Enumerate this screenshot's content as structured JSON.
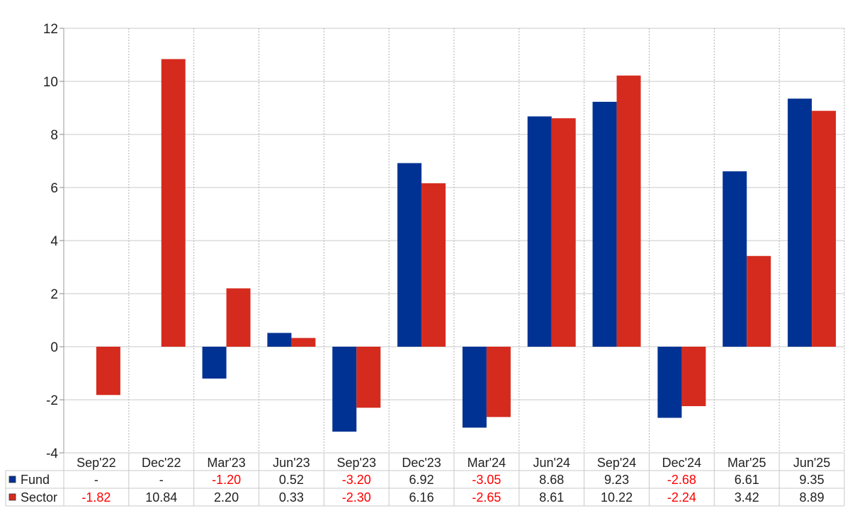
{
  "chart_data": {
    "type": "bar",
    "categories": [
      "Sep'22",
      "Dec'22",
      "Mar'23",
      "Jun'23",
      "Sep'23",
      "Dec'23",
      "Mar'24",
      "Jun'24",
      "Sep'24",
      "Dec'24",
      "Mar'25",
      "Jun'25"
    ],
    "series": [
      {
        "name": "Fund",
        "color": "#003293",
        "values": [
          null,
          null,
          -1.2,
          0.52,
          -3.2,
          6.92,
          -3.05,
          8.68,
          9.23,
          -2.68,
          6.61,
          9.35
        ],
        "labels": [
          "-",
          "-",
          "-1.20",
          "0.52",
          "-3.20",
          "6.92",
          "-3.05",
          "8.68",
          "9.23",
          "-2.68",
          "6.61",
          "9.35"
        ]
      },
      {
        "name": "Sector",
        "color": "#d52b1e",
        "values": [
          -1.82,
          10.84,
          2.2,
          0.33,
          -2.3,
          6.16,
          -2.65,
          8.61,
          10.22,
          -2.24,
          3.42,
          8.89
        ],
        "labels": [
          "-1.82",
          "10.84",
          "2.20",
          "0.33",
          "-2.30",
          "6.16",
          "-2.65",
          "8.61",
          "10.22",
          "-2.24",
          "3.42",
          "8.89"
        ]
      }
    ],
    "ylim": [
      -4,
      12
    ],
    "yticks": [
      "-4",
      "-2",
      "0",
      "2",
      "4",
      "6",
      "8",
      "10",
      "12"
    ],
    "grid": true,
    "legend": "table-bottom",
    "negative_label_color": "#ff0000"
  }
}
